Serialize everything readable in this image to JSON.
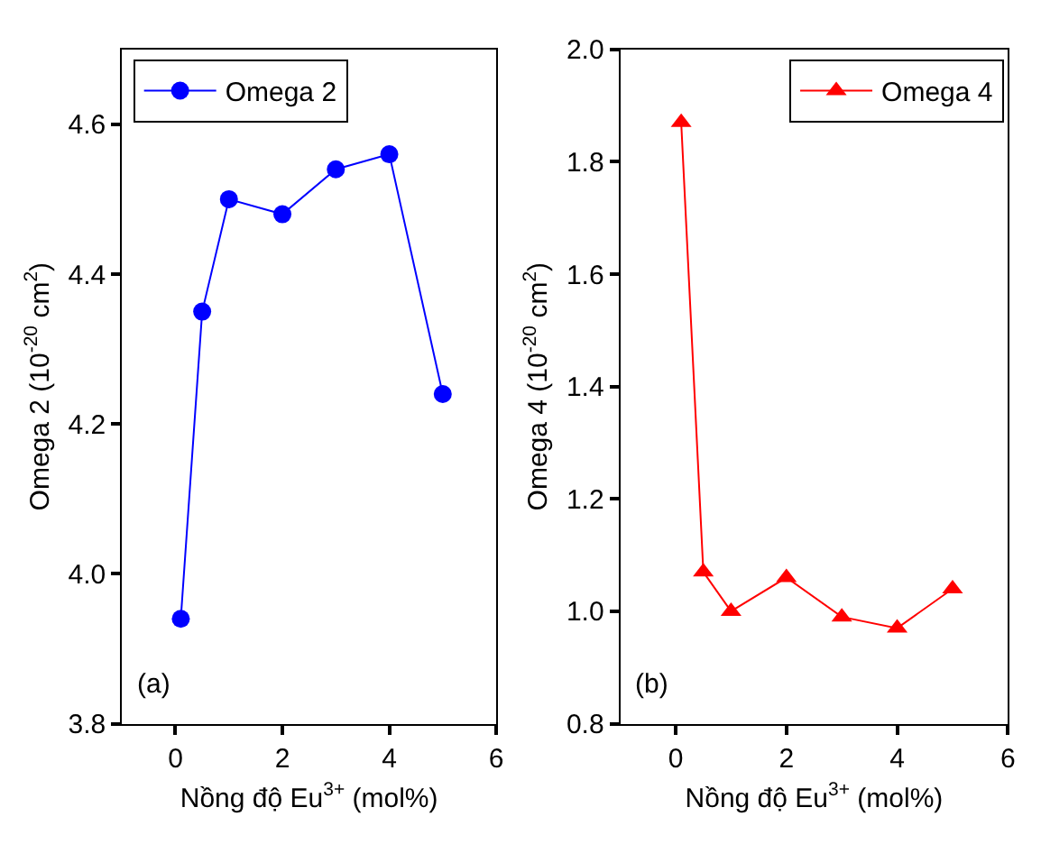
{
  "chart_data": [
    {
      "type": "line",
      "xlabel": "Nồng độ Eu$^{3+}$ (mol%)",
      "ylabel": "Omega 2 (10$^{-20}$ cm$^{2}$)",
      "x": [
        0.1,
        0.5,
        1,
        2,
        3,
        4,
        5
      ],
      "series": [
        {
          "name": "Omega 2",
          "color": "#0000ff",
          "values": [
            3.94,
            4.35,
            4.5,
            4.48,
            4.54,
            4.56,
            4.24
          ]
        }
      ],
      "xlim": [
        -1,
        6
      ],
      "xticks": [
        0,
        2,
        4,
        6
      ],
      "ylim": [
        3.8,
        4.7
      ],
      "yticks": [
        3.8,
        {
          "value": 4,
          "label": "4.0"
        },
        4.2,
        4.4,
        4.6
      ],
      "marker": "circle",
      "line_style": "solid",
      "legend": "top left",
      "annotations": [
        "(a)"
      ]
    },
    {
      "type": "line",
      "xlabel": "Nồng độ Eu$^{3+}$ (mol%)",
      "ylabel": "Omega 4 (10$^{-20}$ cm$^{2}$)",
      "x": [
        0.1,
        0.5,
        1,
        2,
        3,
        4,
        5
      ],
      "series": [
        {
          "name": "Omega 4",
          "color": "#ff0000",
          "values": [
            1.87,
            1.07,
            1.0,
            1.06,
            0.99,
            0.97,
            1.04
          ]
        }
      ],
      "xlim": [
        -1,
        6
      ],
      "xticks": [
        0,
        2,
        4,
        6
      ],
      "ylim": [
        0.8,
        2.0
      ],
      "yticks": [
        0.8,
        {
          "value": 1,
          "label": "1.0"
        },
        1.2,
        1.4,
        1.6,
        1.8,
        {
          "value": 2,
          "label": "2.0"
        }
      ],
      "marker": "triangle",
      "line_style": "solid",
      "legend": "top right",
      "annotations": [
        "(b)"
      ]
    }
  ]
}
